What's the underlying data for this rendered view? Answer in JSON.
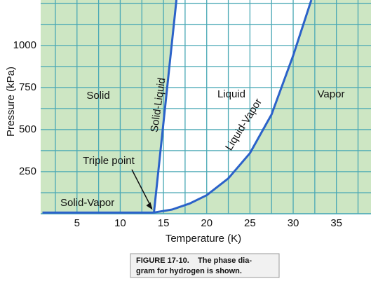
{
  "chart_data": {
    "type": "line",
    "x_label": "Temperature (K)",
    "y_label": "Pressure (kPa)",
    "xlim": [
      0.8,
      39
    ],
    "ylim": [
      0,
      1270
    ],
    "xticks": [
      5,
      10,
      15,
      20,
      25,
      30,
      35
    ],
    "yticks": [
      250,
      500,
      750,
      1000
    ],
    "grid": true,
    "grid_color": "#4aa8b5",
    "background_color": "#cde6c3",
    "liquid_region_color": "#ffffff",
    "series": [
      {
        "name": "Solid-Vapor",
        "color": "#2b62c9",
        "x": [
          1,
          13.9
        ],
        "values": [
          7,
          7
        ]
      },
      {
        "name": "Solid-Liquid",
        "color": "#2b62c9",
        "x": [
          13.9,
          16.5
        ],
        "values": [
          7,
          1270
        ]
      },
      {
        "name": "Liquid-Vapor",
        "color": "#2b62c9",
        "x": [
          13.9,
          16,
          18,
          20,
          22.5,
          25,
          27.5,
          30,
          32.1
        ],
        "values": [
          7,
          25,
          60,
          110,
          210,
          360,
          590,
          940,
          1270
        ]
      }
    ],
    "region_labels": [
      "Solid",
      "Liquid",
      "Vapor"
    ],
    "annotation": {
      "text": "Triple point",
      "x": 13.9,
      "y": 7
    },
    "caption": [
      "FIGURE 17-10.",
      "The phase dia-",
      "gram for hydrogen is shown."
    ]
  }
}
